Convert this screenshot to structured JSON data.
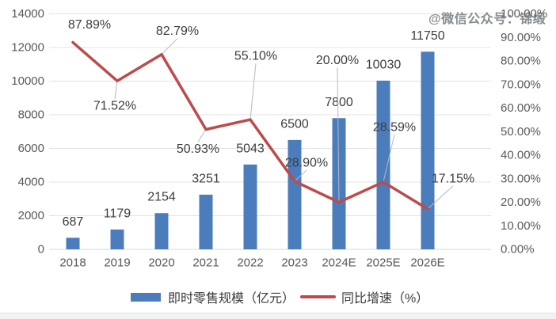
{
  "watermark": "@微信公众号：锦缎",
  "legend": {
    "bar_label": "即时零售规模（亿元）",
    "line_label": "同比增速（%）"
  },
  "colors": {
    "bar": "#4b7dbc",
    "line": "#bd4b4c",
    "grid": "#e3e3e3",
    "baseline": "#d6d8da",
    "axis_text": "#595959",
    "label_text": "#3d3d3d",
    "leader": "#b3bac0"
  },
  "chart_data": {
    "type": "bar+line combo",
    "categories": [
      "2018",
      "2019",
      "2020",
      "2021",
      "2022",
      "2023",
      "2024E",
      "2025E",
      "2026E"
    ],
    "series": [
      {
        "name": "即时零售规模（亿元）",
        "type": "bar",
        "axis": "left",
        "values": [
          687,
          1179,
          2154,
          3251,
          5043,
          6500,
          7800,
          10030,
          11750
        ],
        "labels": [
          "687",
          "1179",
          "2154",
          "3251",
          "5043",
          "6500",
          "7800",
          "10030",
          "11750"
        ]
      },
      {
        "name": "同比增速（%）",
        "type": "line",
        "axis": "right",
        "values": [
          87.89,
          71.52,
          82.79,
          50.93,
          55.1,
          28.9,
          20.0,
          28.59,
          17.15
        ],
        "labels": [
          "87.89%",
          "71.52%",
          "82.79%",
          "50.93%",
          "55.10%",
          "28.90%",
          "20.00%",
          "28.59%",
          "17.15%"
        ]
      }
    ],
    "left_axis": {
      "min": 0,
      "max": 14000,
      "step": 2000,
      "ticks": [
        "0",
        "2000",
        "4000",
        "6000",
        "8000",
        "10000",
        "12000",
        "14000"
      ]
    },
    "right_axis": {
      "min": 0,
      "max": 100,
      "step": 10,
      "ticks": [
        "0.00%",
        "10.00%",
        "20.00%",
        "30.00%",
        "40.00%",
        "50.00%",
        "60.00%",
        "70.00%",
        "80.00%",
        "90.00%",
        "100.00%"
      ]
    },
    "grid": "horizontal gridlines at left-axis steps",
    "legend_position": "bottom"
  }
}
